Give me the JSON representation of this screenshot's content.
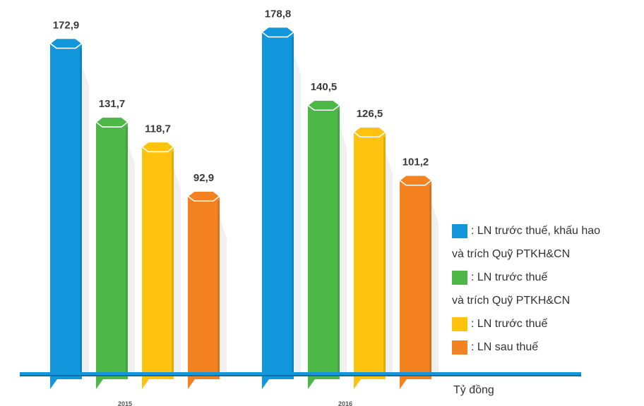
{
  "chart_data": {
    "type": "bar",
    "title": "",
    "xlabel": "",
    "ylabel": "",
    "unit": "Tỷ đồng",
    "categories": [
      "2015",
      "2016"
    ],
    "ylim": [
      0,
      200
    ],
    "series": [
      {
        "name": ": LN trước thuế, khấu hao",
        "name_cont": "và trích Quỹ PTKH&CN",
        "color": "#1296dc",
        "values": [
          172.9,
          178.8
        ],
        "labels": [
          "172,9",
          "178,8"
        ]
      },
      {
        "name": ": LN trước thuế",
        "name_cont": "và trích  Quỹ PTKH&CN",
        "color": "#4db848",
        "values": [
          131.7,
          140.5
        ],
        "labels": [
          "131,7",
          "140,5"
        ]
      },
      {
        "name": ": LN trước thuế",
        "name_cont": "",
        "color": "#ffc20e",
        "values": [
          118.7,
          126.5
        ],
        "labels": [
          "118,7",
          "126,5"
        ]
      },
      {
        "name": ": LN sau thuế",
        "name_cont": "",
        "color": "#f58220",
        "values": [
          92.9,
          101.2
        ],
        "labels": [
          "92,9",
          "101,2"
        ]
      }
    ],
    "legend_position": "right",
    "grid": false
  }
}
